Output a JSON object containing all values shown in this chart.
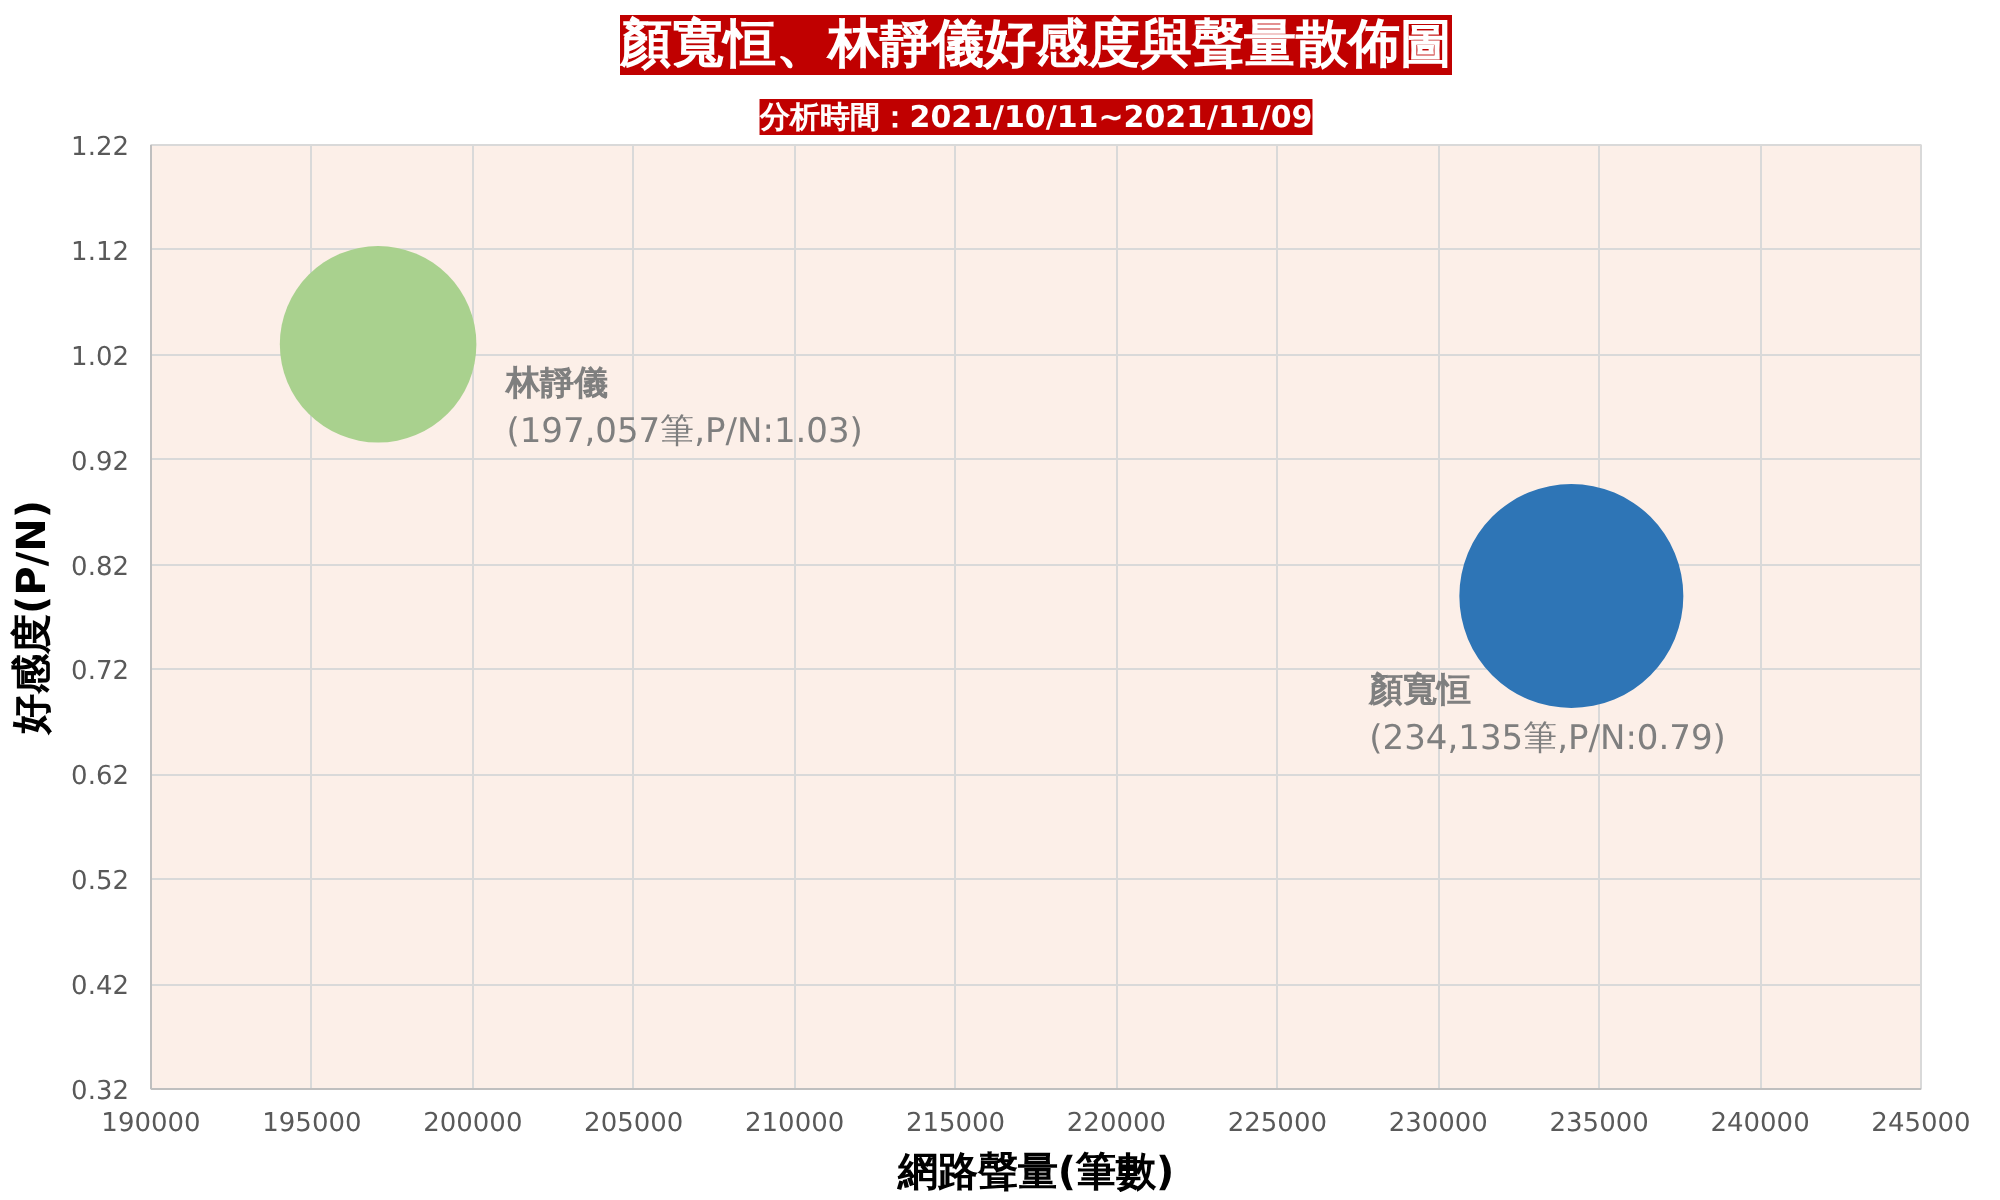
{
  "chart_data": {
    "type": "bubble",
    "title": "顏寬恒、林靜儀好感度與聲量散佈圖",
    "subtitle": "分析時間：2021/10/11~2021/11/09",
    "xlabel": "網路聲量(筆數)",
    "ylabel": "好感度(P/N)",
    "series": [
      {
        "name": "林靜儀",
        "color": "#a9d18e",
        "x": [
          197057
        ],
        "values": [
          1.03
        ],
        "sizes": [
          0.77
        ],
        "value_labels": [
          "(197,057筆,P/N:1.03)"
        ]
      },
      {
        "name": "顏寬恒",
        "color": "#2e75b6",
        "x": [
          234135
        ],
        "values": [
          0.79
        ],
        "sizes": [
          1
        ],
        "value_labels": [
          "(234,135筆,P/N:0.79)"
        ]
      }
    ],
    "xlim": [
      190000,
      245000
    ],
    "xticks": [
      190000,
      195000,
      200000,
      205000,
      210000,
      215000,
      220000,
      225000,
      230000,
      235000,
      240000,
      245000
    ],
    "ylim": [
      0.32,
      1.22
    ],
    "yticks": [
      0.32,
      0.42,
      0.52,
      0.62,
      0.72,
      0.82,
      0.92,
      1.02,
      1.12,
      1.22
    ],
    "grid": true
  }
}
